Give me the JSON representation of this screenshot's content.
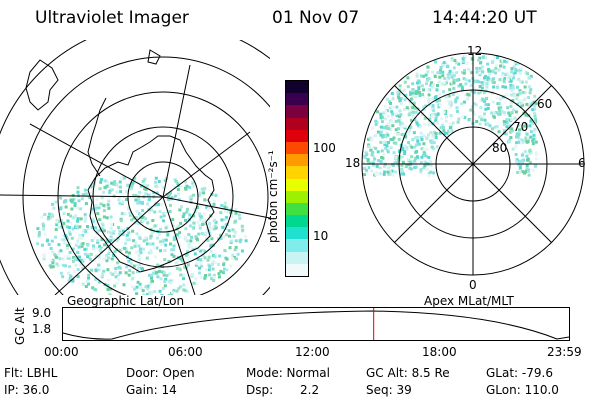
{
  "header": {
    "title": "Ultraviolet Imager",
    "date": "01 Nov 07",
    "time": "14:44:20 UT"
  },
  "left_panel": {
    "caption": "Geographic Lat/Lon"
  },
  "right_panel": {
    "caption": "Apex MLat/MLT",
    "mlt_labels": {
      "top": "12",
      "left": "18",
      "right": "6",
      "bottom": "0"
    },
    "mlat_labels": [
      "60",
      "70",
      "80"
    ]
  },
  "colorbar": {
    "unit_label": "photon cm⁻²s⁻¹",
    "ticks": [
      "100",
      "10"
    ],
    "colors": [
      "#12002e",
      "#3a0050",
      "#7a0040",
      "#b0001e",
      "#e0000c",
      "#ff4800",
      "#ff9a00",
      "#ffd400",
      "#e8ff00",
      "#9cf000",
      "#40e040",
      "#00d890",
      "#20e0d0",
      "#80ecec",
      "#c8f4f4",
      "#f0fafa"
    ]
  },
  "timeline": {
    "axis_label": "GC Alt",
    "y_ticks": [
      "9.0",
      "1.8"
    ],
    "x_ticks": [
      "00:00",
      "06:00",
      "12:00",
      "18:00",
      "23:59"
    ],
    "current_time_fraction": 0.614
  },
  "info": {
    "filter_label": "Flt: LBHL",
    "ip_label": "IP: 36.0",
    "door_label": "Door: Open",
    "gain_label": "Gain: 14",
    "mode_label": "Mode: Normal",
    "dsp_label": "Dsp:",
    "dsp_value": "2.2",
    "gc_alt_label": "GC Alt: 8.5 Re",
    "seq_label": "Seq: 39",
    "glat_label": "GLat: -79.6",
    "glon_label": "GLon: 110.0"
  }
}
